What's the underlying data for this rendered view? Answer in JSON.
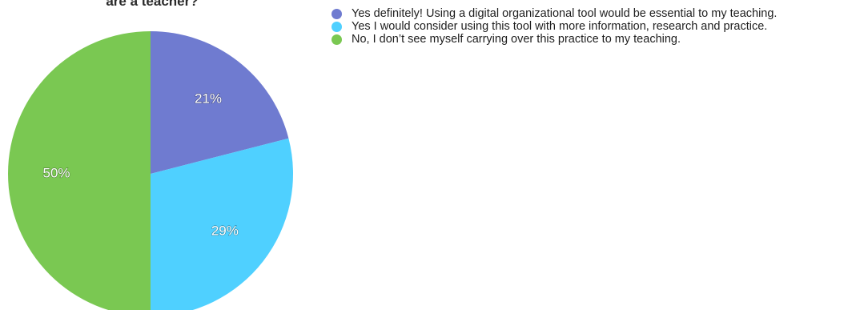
{
  "chart_data": {
    "type": "pie",
    "title": "are a teacher?",
    "slices": [
      {
        "label": "Yes definitely! Using a digital organizational tool would be essential to my teaching.",
        "value": 21,
        "color": "#6f7bd0",
        "display": "21%"
      },
      {
        "label": "Yes I would consider using this tool with more information, research and practice.",
        "value": 29,
        "color": "#4fd0ff",
        "display": "29%"
      },
      {
        "label": "No, I don’t see myself carrying over this practice to my teaching.",
        "value": 50,
        "color": "#7ac852",
        "display": "50%"
      }
    ],
    "legend_position": "top-right"
  }
}
